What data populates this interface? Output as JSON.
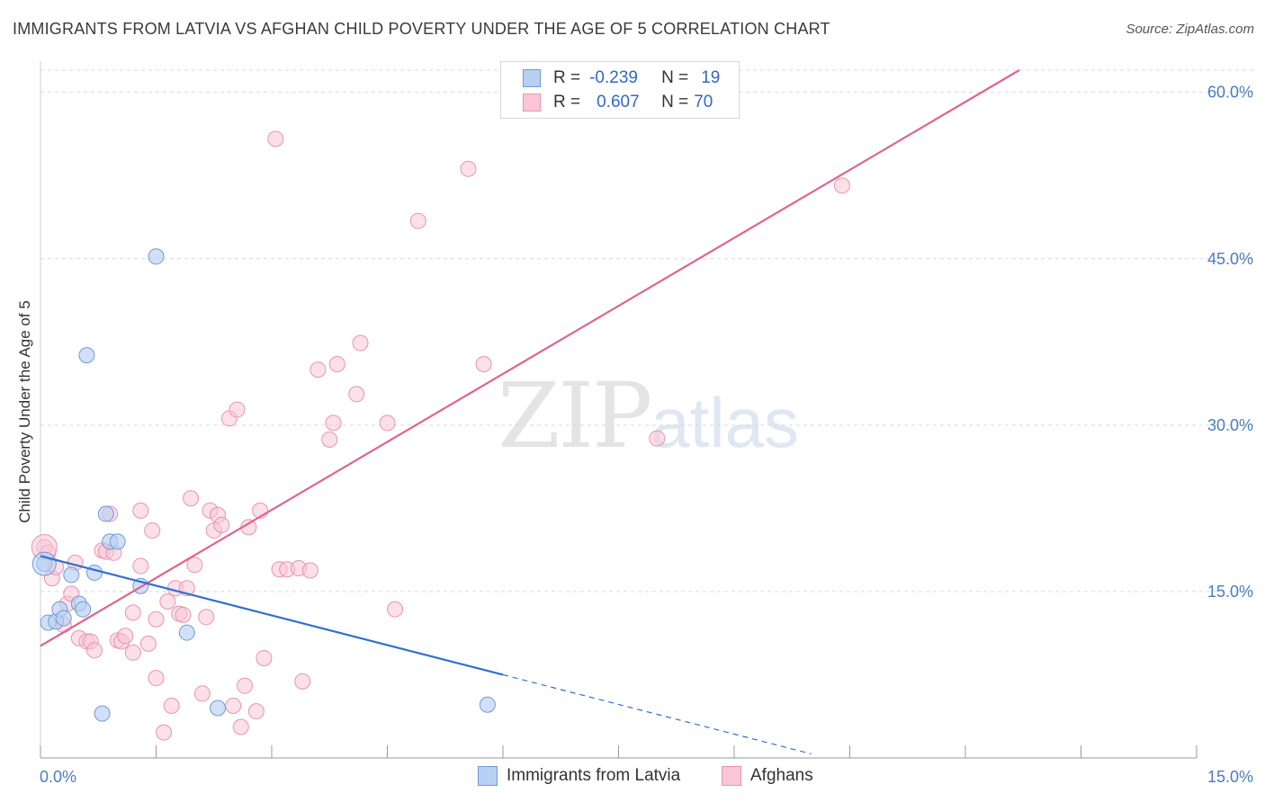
{
  "header": {
    "title": "IMMIGRANTS FROM LATVIA VS AFGHAN CHILD POVERTY UNDER THE AGE OF 5 CORRELATION CHART",
    "source": "Source: ZipAtlas.com"
  },
  "watermark": {
    "zip": "ZIP",
    "atlas": "atlas"
  },
  "legend": {
    "latvia": {
      "r_label": "R =",
      "r_value": "-0.239",
      "n_label": "N =",
      "n_value": "19"
    },
    "afghans": {
      "r_label": "R =",
      "r_value": "0.607",
      "n_label": "N =",
      "n_value": "70"
    }
  },
  "colors": {
    "latvia_fill": "#b8d0f2",
    "latvia_stroke": "#6f9bd8",
    "latvia_line": "#2f6fd0",
    "afghan_fill": "#f8c6d6",
    "afghan_stroke": "#e993b1",
    "afghan_line": "#e0628f",
    "grid": "#d9d9d9",
    "tick_text": "#4a7cc4"
  },
  "chart_data": {
    "type": "scatter",
    "title": "IMMIGRANTS FROM LATVIA VS AFGHAN CHILD POVERTY UNDER THE AGE OF 5 CORRELATION CHART",
    "xlabel": "",
    "ylabel": "Child Poverty Under the Age of 5",
    "xlim": [
      0,
      15
    ],
    "ylim": [
      0,
      62
    ],
    "x_tick_labels": [
      "0.0%",
      "15.0%"
    ],
    "y_ticks": [
      15,
      30,
      45,
      60
    ],
    "y_tick_labels": [
      "15.0%",
      "30.0%",
      "45.0%",
      "60.0%"
    ],
    "legend_position": "top-center",
    "series": [
      {
        "name": "Immigrants from Latvia",
        "points": [
          [
            0.05,
            17.5
          ],
          [
            0.1,
            12.2
          ],
          [
            0.2,
            12.3
          ],
          [
            0.25,
            13.4
          ],
          [
            0.3,
            12.6
          ],
          [
            0.4,
            16.5
          ],
          [
            0.5,
            13.9
          ],
          [
            0.55,
            13.4
          ],
          [
            0.6,
            36.3
          ],
          [
            0.7,
            16.7
          ],
          [
            0.8,
            4.0
          ],
          [
            0.85,
            22.0
          ],
          [
            0.9,
            19.5
          ],
          [
            1.0,
            19.5
          ],
          [
            1.3,
            15.5
          ],
          [
            1.5,
            45.2
          ],
          [
            1.9,
            11.3
          ],
          [
            2.3,
            4.5
          ],
          [
            5.8,
            4.8
          ]
        ],
        "trend": {
          "x0": 0.0,
          "y0": 18.2,
          "x1": 6.0,
          "y1": 7.5,
          "dash_to_x": 10.0
        }
      },
      {
        "name": "Afghans",
        "points": [
          [
            0.05,
            19.0
          ],
          [
            0.1,
            18.5
          ],
          [
            0.15,
            16.2
          ],
          [
            0.2,
            17.2
          ],
          [
            0.3,
            12.0
          ],
          [
            0.35,
            13.9
          ],
          [
            0.4,
            14.8
          ],
          [
            0.45,
            17.6
          ],
          [
            0.5,
            10.8
          ],
          [
            0.6,
            10.5
          ],
          [
            0.65,
            10.5
          ],
          [
            0.7,
            9.7
          ],
          [
            0.8,
            18.7
          ],
          [
            0.85,
            18.6
          ],
          [
            0.9,
            22.0
          ],
          [
            0.95,
            18.5
          ],
          [
            1.0,
            10.6
          ],
          [
            1.05,
            10.5
          ],
          [
            1.1,
            11.0
          ],
          [
            1.2,
            9.5
          ],
          [
            1.2,
            13.1
          ],
          [
            1.3,
            17.3
          ],
          [
            1.3,
            22.3
          ],
          [
            1.4,
            10.3
          ],
          [
            1.45,
            20.5
          ],
          [
            1.5,
            7.2
          ],
          [
            1.5,
            12.5
          ],
          [
            1.6,
            2.3
          ],
          [
            1.65,
            14.1
          ],
          [
            1.7,
            4.7
          ],
          [
            1.75,
            15.3
          ],
          [
            1.8,
            13.0
          ],
          [
            1.85,
            12.9
          ],
          [
            1.9,
            15.3
          ],
          [
            1.95,
            23.4
          ],
          [
            2.0,
            17.4
          ],
          [
            2.1,
            5.8
          ],
          [
            2.15,
            12.7
          ],
          [
            2.2,
            22.3
          ],
          [
            2.25,
            20.5
          ],
          [
            2.3,
            21.9
          ],
          [
            2.35,
            21.0
          ],
          [
            2.45,
            30.6
          ],
          [
            2.5,
            4.7
          ],
          [
            2.55,
            31.4
          ],
          [
            2.6,
            2.8
          ],
          [
            2.65,
            6.5
          ],
          [
            2.7,
            20.8
          ],
          [
            2.8,
            4.2
          ],
          [
            2.85,
            22.3
          ],
          [
            2.9,
            9.0
          ],
          [
            3.05,
            55.8
          ],
          [
            3.1,
            17.0
          ],
          [
            3.2,
            17.0
          ],
          [
            3.35,
            17.1
          ],
          [
            3.4,
            6.9
          ],
          [
            3.5,
            16.9
          ],
          [
            3.6,
            35.0
          ],
          [
            3.75,
            28.7
          ],
          [
            3.8,
            30.2
          ],
          [
            3.85,
            35.5
          ],
          [
            4.1,
            32.8
          ],
          [
            4.15,
            37.4
          ],
          [
            4.5,
            30.2
          ],
          [
            4.6,
            13.4
          ],
          [
            4.9,
            48.4
          ],
          [
            5.55,
            53.1
          ],
          [
            5.75,
            35.5
          ],
          [
            8.0,
            28.8
          ],
          [
            10.4,
            51.6
          ]
        ],
        "trend": {
          "x0": 0.0,
          "y0": 10.1,
          "x1": 12.7,
          "y1": 62.0
        }
      }
    ]
  },
  "bottom_legend": {
    "latvia": "Immigrants from Latvia",
    "afghans": "Afghans"
  }
}
